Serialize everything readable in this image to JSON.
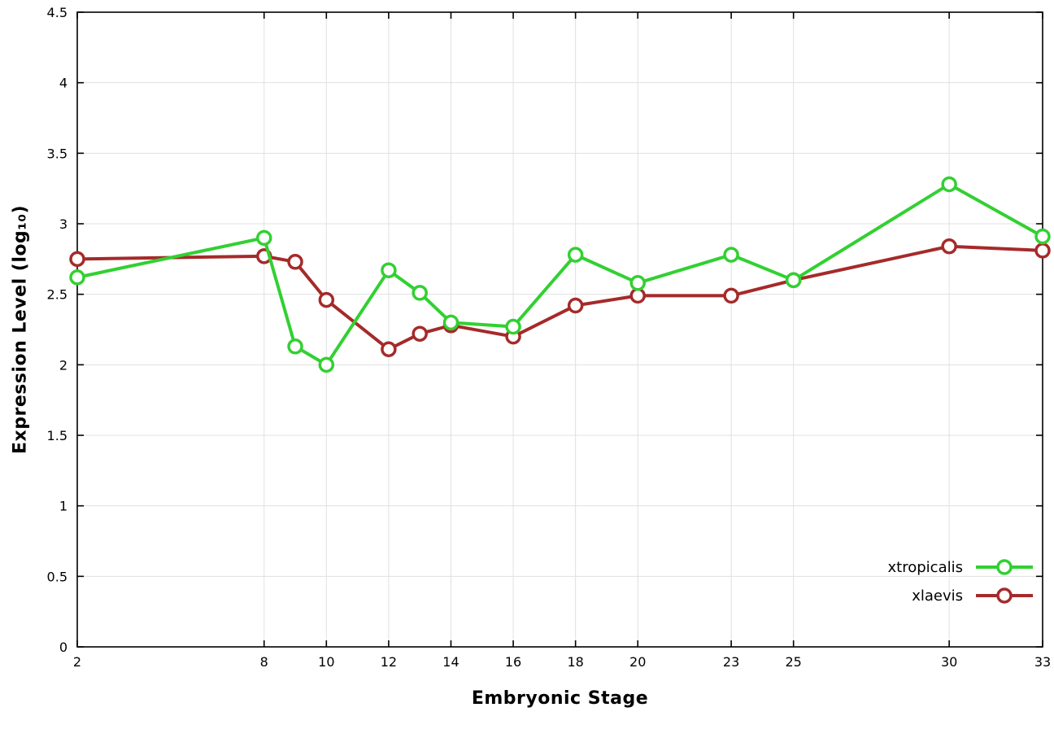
{
  "chart_data": {
    "type": "line",
    "title": "",
    "xlabel": "Embryonic Stage",
    "ylabel": "Expression Level (log₁₀)",
    "xlim": [
      2,
      33
    ],
    "ylim": [
      0,
      4.5
    ],
    "xticks": [
      2,
      8,
      10,
      12,
      14,
      16,
      18,
      20,
      23,
      25,
      30,
      33
    ],
    "yticks": [
      0,
      0.5,
      1,
      1.5,
      2,
      2.5,
      3,
      3.5,
      4,
      4.5
    ],
    "grid": true,
    "legend_position": "bottom-right-inside",
    "marker": "open-circle",
    "x": [
      2,
      8,
      9,
      10,
      12,
      13,
      14,
      16,
      18,
      20,
      23,
      25,
      30,
      33
    ],
    "series": [
      {
        "name": "xtropicalis",
        "color": "#32d032",
        "values": [
          2.62,
          2.9,
          2.13,
          2.0,
          2.67,
          2.51,
          2.3,
          2.27,
          2.78,
          2.58,
          2.78,
          2.6,
          3.28,
          2.91
        ]
      },
      {
        "name": "xlaevis",
        "color": "#a52a2a",
        "values": [
          2.75,
          2.77,
          2.73,
          2.46,
          2.11,
          2.22,
          2.28,
          2.2,
          2.42,
          2.49,
          2.49,
          2.6,
          2.84,
          2.81
        ]
      }
    ],
    "style": {
      "grid_color": "#e0e0e0",
      "axis_color": "#000000",
      "line_width": 4,
      "marker_radius": 8,
      "marker_stroke": 3.5,
      "marker_fill": "#ffffff"
    }
  }
}
